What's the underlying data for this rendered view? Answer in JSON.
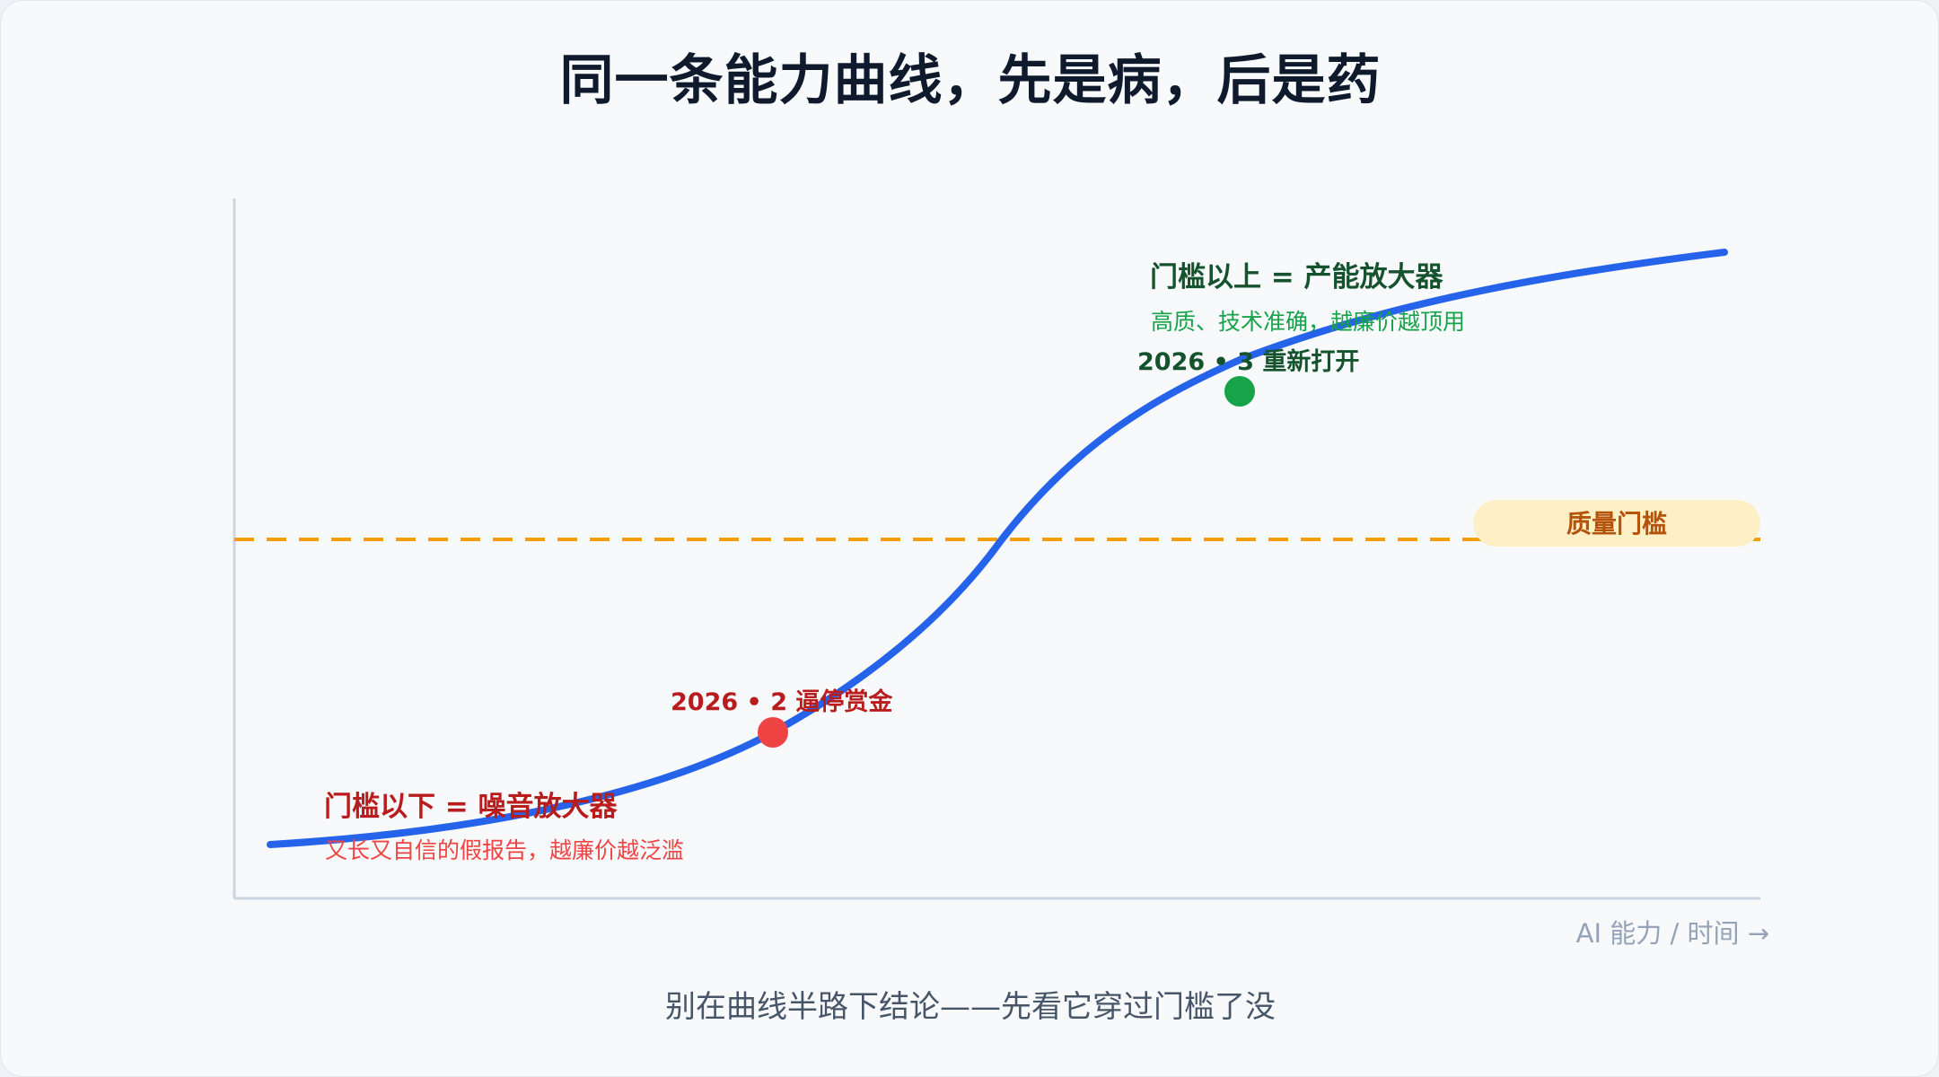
{
  "title": "同一条能力曲线，先是病，后是药",
  "threshold": {
    "label": "质量门槛"
  },
  "x_axis_label": "AI 能力 / 时间 →",
  "above": {
    "heading": "门槛以上 = 产能放大器",
    "detail": "高质、技术准确，越廉价越顶用"
  },
  "below": {
    "heading": "门槛以下 = 噪音放大器",
    "detail": "又长又自信的假报告，越廉价越泛滥"
  },
  "events": [
    {
      "label": "2026 • 2 逼停赏金",
      "color": "#ef4444"
    },
    {
      "label": "2026 • 3 重新打开",
      "color": "#16a34a"
    }
  ],
  "footer": "别在曲线半路下结论——先看它穿过门槛了没",
  "colors": {
    "curve": "#2563eb",
    "threshold_line": "#f59e0b",
    "threshold_badge_bg": "#fdf0c7",
    "threshold_badge_text": "#b45309",
    "above_heading": "#14532d",
    "above_detail": "#16a34a",
    "below_heading": "#b91c1c",
    "below_detail": "#ef4444",
    "axis": "#cbd5e1",
    "axis_label": "#94a3b8"
  }
}
